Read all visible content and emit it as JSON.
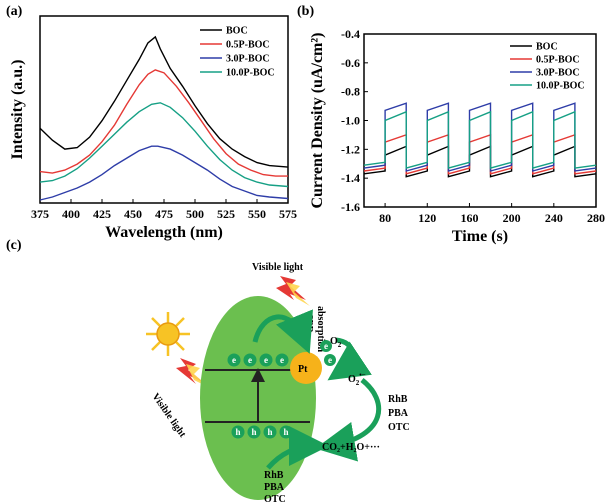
{
  "panels": {
    "a": "(a)",
    "b": "(b)",
    "c": "(c)"
  },
  "colors": {
    "BOC": "#000000",
    "0.5P-BOC": "#e53935",
    "3.0P-BOC": "#2e3da8",
    "10.0P-BOC": "#16a085",
    "ellipse": "#6bbf4f",
    "arrow": "#1aa05a",
    "pt": "#f6b21a",
    "sun": "#f7c325"
  },
  "chart_data": [
    {
      "type": "line",
      "ylabel": "Intensity (a.u.)",
      "xlabel": "Wavelength (nm)",
      "xlim": [
        375,
        575
      ],
      "ylim": [
        0,
        1.25
      ],
      "xticks": [
        "375",
        "400",
        "425",
        "450",
        "475",
        "500",
        "525",
        "550",
        "575"
      ],
      "yticks": [],
      "legend_position": "top-right",
      "series": [
        {
          "name": "BOC",
          "x": [
            375,
            385,
            395,
            405,
            415,
            425,
            435,
            445,
            455,
            462,
            468,
            472,
            480,
            490,
            500,
            510,
            520,
            530,
            540,
            550,
            560,
            575
          ],
          "y": [
            0.5,
            0.42,
            0.36,
            0.37,
            0.44,
            0.55,
            0.68,
            0.82,
            0.96,
            1.07,
            1.11,
            1.03,
            0.9,
            0.78,
            0.65,
            0.53,
            0.43,
            0.36,
            0.31,
            0.27,
            0.25,
            0.24
          ]
        },
        {
          "name": "0.5P-BOC",
          "x": [
            375,
            385,
            395,
            405,
            415,
            425,
            435,
            445,
            455,
            462,
            468,
            475,
            485,
            495,
            505,
            515,
            525,
            535,
            545,
            555,
            565,
            575
          ],
          "y": [
            0.21,
            0.2,
            0.22,
            0.26,
            0.32,
            0.41,
            0.52,
            0.66,
            0.79,
            0.86,
            0.89,
            0.87,
            0.78,
            0.67,
            0.55,
            0.43,
            0.33,
            0.26,
            0.22,
            0.19,
            0.18,
            0.18
          ]
        },
        {
          "name": "3.0P-BOC",
          "x": [
            375,
            385,
            395,
            405,
            415,
            425,
            435,
            445,
            455,
            465,
            470,
            480,
            490,
            500,
            510,
            520,
            530,
            540,
            550,
            560,
            575
          ],
          "y": [
            0.02,
            0.04,
            0.07,
            0.1,
            0.14,
            0.19,
            0.25,
            0.3,
            0.35,
            0.38,
            0.38,
            0.36,
            0.32,
            0.27,
            0.22,
            0.16,
            0.11,
            0.08,
            0.05,
            0.04,
            0.03
          ]
        },
        {
          "name": "10.0P-BOC",
          "x": [
            375,
            385,
            395,
            405,
            415,
            425,
            435,
            445,
            455,
            465,
            472,
            480,
            490,
            500,
            510,
            520,
            530,
            540,
            550,
            560,
            575
          ],
          "y": [
            0.14,
            0.15,
            0.18,
            0.23,
            0.3,
            0.38,
            0.46,
            0.54,
            0.61,
            0.66,
            0.67,
            0.64,
            0.57,
            0.48,
            0.38,
            0.29,
            0.22,
            0.17,
            0.14,
            0.12,
            0.11
          ]
        }
      ]
    },
    {
      "type": "line",
      "ylabel": "Current Density (uA/cm²)",
      "xlabel": "Time (s)",
      "xlim": [
        60,
        280
      ],
      "ylim": [
        -1.6,
        -0.4
      ],
      "xticks": [
        "80",
        "120",
        "160",
        "200",
        "240",
        "280"
      ],
      "yticks": [
        "-0.4",
        "-0.6",
        "-0.8",
        "-1.0",
        "-1.2",
        "-1.4",
        "-1.6"
      ],
      "legend_position": "top-right",
      "on_windows": [
        [
          80,
          100
        ],
        [
          120,
          140
        ],
        [
          160,
          180
        ],
        [
          200,
          220
        ],
        [
          240,
          260
        ]
      ],
      "series": [
        {
          "name": "BOC",
          "dark": -1.37,
          "light_start": -1.24,
          "light_end": -1.18
        },
        {
          "name": "0.5P-BOC",
          "dark": -1.35,
          "light_start": -1.15,
          "light_end": -1.1
        },
        {
          "name": "3.0P-BOC",
          "dark": -1.33,
          "light_start": -0.93,
          "light_end": -0.88
        },
        {
          "name": "10.0P-BOC",
          "dark": -1.31,
          "light_start": -1.0,
          "light_end": -0.94
        }
      ]
    }
  ],
  "schematic": {
    "visible_light_top": "Visible light",
    "visible_light_left": "Visible light",
    "spr": "SPR",
    "absorption": "absorption",
    "pt": "Pt",
    "electrons": [
      "e",
      "e",
      "e",
      "e"
    ],
    "holes": [
      "h",
      "h",
      "h",
      "h"
    ],
    "pt_electrons": [
      "e",
      "e"
    ],
    "o2": "O",
    "o2_sub": "2",
    "o2_radical": "O",
    "o2_radical_sub": "2",
    "o2_radical_sup": "•−",
    "pollutants_right": [
      "RhB",
      "PBA",
      "OTC"
    ],
    "pollutants_bottom": [
      "RhB",
      "PBA",
      "OTC"
    ],
    "products": "CO₂+H₂O+···"
  }
}
